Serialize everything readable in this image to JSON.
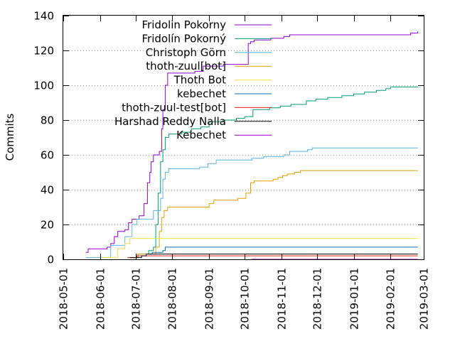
{
  "chart_data": {
    "type": "line",
    "title": "",
    "xlabel": "",
    "ylabel": "Commits",
    "xlim": [
      "2018-05-01",
      "2019-03-01"
    ],
    "ylim": [
      0,
      140
    ],
    "y_ticks": [
      0,
      20,
      40,
      60,
      80,
      100,
      120,
      140
    ],
    "x_ticks": [
      "2018-05-01",
      "2018-06-01",
      "2018-07-01",
      "2018-08-01",
      "2018-09-01",
      "2018-10-01",
      "2018-11-01",
      "2018-12-01",
      "2019-01-01",
      "2019-02-01",
      "2019-03-01"
    ],
    "grid": "horizontal dotted",
    "legend_position": "top-left inside",
    "step": true,
    "series": [
      {
        "name": "Fridolin Pokorny",
        "color": "#9400d3",
        "points": [
          [
            "2018-05-20",
            4
          ],
          [
            "2018-05-22",
            6
          ],
          [
            "2018-06-07",
            7
          ],
          [
            "2018-06-10",
            9
          ],
          [
            "2018-06-13",
            13
          ],
          [
            "2018-06-16",
            16
          ],
          [
            "2018-06-22",
            17
          ],
          [
            "2018-06-25",
            21
          ],
          [
            "2018-06-28",
            23
          ],
          [
            "2018-07-04",
            25
          ],
          [
            "2018-07-08",
            32
          ],
          [
            "2018-07-11",
            44
          ],
          [
            "2018-07-13",
            50
          ],
          [
            "2018-07-14",
            56
          ],
          [
            "2018-07-16",
            60
          ],
          [
            "2018-07-21",
            62
          ],
          [
            "2018-07-23",
            75
          ],
          [
            "2018-07-24",
            86
          ],
          [
            "2018-07-26",
            100
          ],
          [
            "2018-07-28",
            107
          ],
          [
            "2018-08-20",
            108
          ],
          [
            "2018-08-27",
            111
          ],
          [
            "2018-09-13",
            112
          ],
          [
            "2018-10-04",
            124
          ],
          [
            "2018-10-06",
            125
          ],
          [
            "2018-10-09",
            126
          ],
          [
            "2018-10-23",
            127
          ],
          [
            "2018-11-03",
            128
          ],
          [
            "2018-11-08",
            129
          ],
          [
            "2019-02-18",
            130
          ],
          [
            "2019-02-24",
            131
          ]
        ]
      },
      {
        "name": "Fridolín Pokorný",
        "color": "#009e73",
        "points": [
          [
            "2018-06-28",
            1
          ],
          [
            "2018-07-03",
            3
          ],
          [
            "2018-07-12",
            5
          ],
          [
            "2018-07-16",
            7
          ],
          [
            "2018-07-18",
            20
          ],
          [
            "2018-07-20",
            38
          ],
          [
            "2018-07-22",
            56
          ],
          [
            "2018-07-24",
            63
          ],
          [
            "2018-07-26",
            70
          ],
          [
            "2018-07-29",
            72
          ],
          [
            "2018-08-09",
            73
          ],
          [
            "2018-08-17",
            75
          ],
          [
            "2018-08-25",
            76
          ],
          [
            "2018-09-01",
            79
          ],
          [
            "2018-09-13",
            80
          ],
          [
            "2018-09-24",
            81
          ],
          [
            "2018-10-01",
            82
          ],
          [
            "2018-10-08",
            86
          ],
          [
            "2018-10-22",
            87
          ],
          [
            "2018-10-31",
            88
          ],
          [
            "2018-11-09",
            89
          ],
          [
            "2018-11-22",
            91
          ],
          [
            "2018-11-30",
            92
          ],
          [
            "2018-12-10",
            93
          ],
          [
            "2018-12-22",
            94
          ],
          [
            "2019-01-01",
            95
          ],
          [
            "2019-01-10",
            96
          ],
          [
            "2019-01-20",
            97
          ],
          [
            "2019-01-28",
            98
          ],
          [
            "2019-02-01",
            99
          ],
          [
            "2019-02-24",
            99
          ]
        ]
      },
      {
        "name": "Christoph Görn",
        "color": "#56b4e9",
        "points": [
          [
            "2018-05-20",
            1
          ],
          [
            "2018-06-10",
            8
          ],
          [
            "2018-06-22",
            13
          ],
          [
            "2018-06-28",
            20
          ],
          [
            "2018-07-02",
            23
          ],
          [
            "2018-07-16",
            28
          ],
          [
            "2018-07-22",
            35
          ],
          [
            "2018-07-24",
            46
          ],
          [
            "2018-07-26",
            50
          ],
          [
            "2018-07-29",
            52
          ],
          [
            "2018-08-24",
            53
          ],
          [
            "2018-08-31",
            55
          ],
          [
            "2018-09-07",
            57
          ],
          [
            "2018-10-07",
            58
          ],
          [
            "2018-10-17",
            59
          ],
          [
            "2018-11-03",
            60
          ],
          [
            "2018-11-08",
            62
          ],
          [
            "2018-11-23",
            63
          ],
          [
            "2018-11-27",
            64
          ],
          [
            "2019-02-24",
            64
          ]
        ]
      },
      {
        "name": "thoth-zuul[bot]",
        "color": "#e69f00",
        "points": [
          [
            "2018-07-02",
            3
          ],
          [
            "2018-07-18",
            7
          ],
          [
            "2018-07-21",
            16
          ],
          [
            "2018-07-23",
            24
          ],
          [
            "2018-07-25",
            28
          ],
          [
            "2018-07-28",
            30
          ],
          [
            "2018-09-01",
            32
          ],
          [
            "2018-09-05",
            34
          ],
          [
            "2018-09-25",
            35
          ],
          [
            "2018-10-02",
            38
          ],
          [
            "2018-10-06",
            44
          ],
          [
            "2018-10-09",
            45
          ],
          [
            "2018-10-25",
            46
          ],
          [
            "2018-10-29",
            47
          ],
          [
            "2018-11-02",
            48
          ],
          [
            "2018-11-06",
            49
          ],
          [
            "2018-11-12",
            50
          ],
          [
            "2018-11-17",
            51
          ],
          [
            "2019-02-24",
            51
          ]
        ]
      },
      {
        "name": "Thoth Bot",
        "color": "#f0e442",
        "points": [
          [
            "2018-06-02",
            1
          ],
          [
            "2018-06-16",
            6
          ],
          [
            "2018-06-22",
            9
          ],
          [
            "2018-06-26",
            12
          ],
          [
            "2019-02-24",
            12
          ]
        ]
      },
      {
        "name": "kebechet",
        "color": "#0072b2",
        "points": [
          [
            "2018-07-12",
            3
          ],
          [
            "2018-07-15",
            4
          ],
          [
            "2018-07-24",
            5
          ],
          [
            "2018-07-26",
            7
          ],
          [
            "2019-02-24",
            7
          ]
        ]
      },
      {
        "name": "thoth-zuul-test[bot]",
        "color": "#e51e10",
        "points": [
          [
            "2018-06-24",
            1
          ],
          [
            "2018-07-02",
            2
          ],
          [
            "2019-02-24",
            2
          ]
        ]
      },
      {
        "name": "Harshad Reddy Nalla",
        "color": "#000000",
        "points": [
          [
            "2018-06-26",
            1
          ],
          [
            "2018-07-06",
            2
          ],
          [
            "2018-07-10",
            3
          ],
          [
            "2019-02-24",
            3
          ]
        ]
      },
      {
        "name": "Kebechet",
        "color": "#9400d3",
        "points": [
          [
            "2018-10-07",
            0
          ],
          [
            "2019-02-24",
            0
          ]
        ]
      }
    ]
  }
}
